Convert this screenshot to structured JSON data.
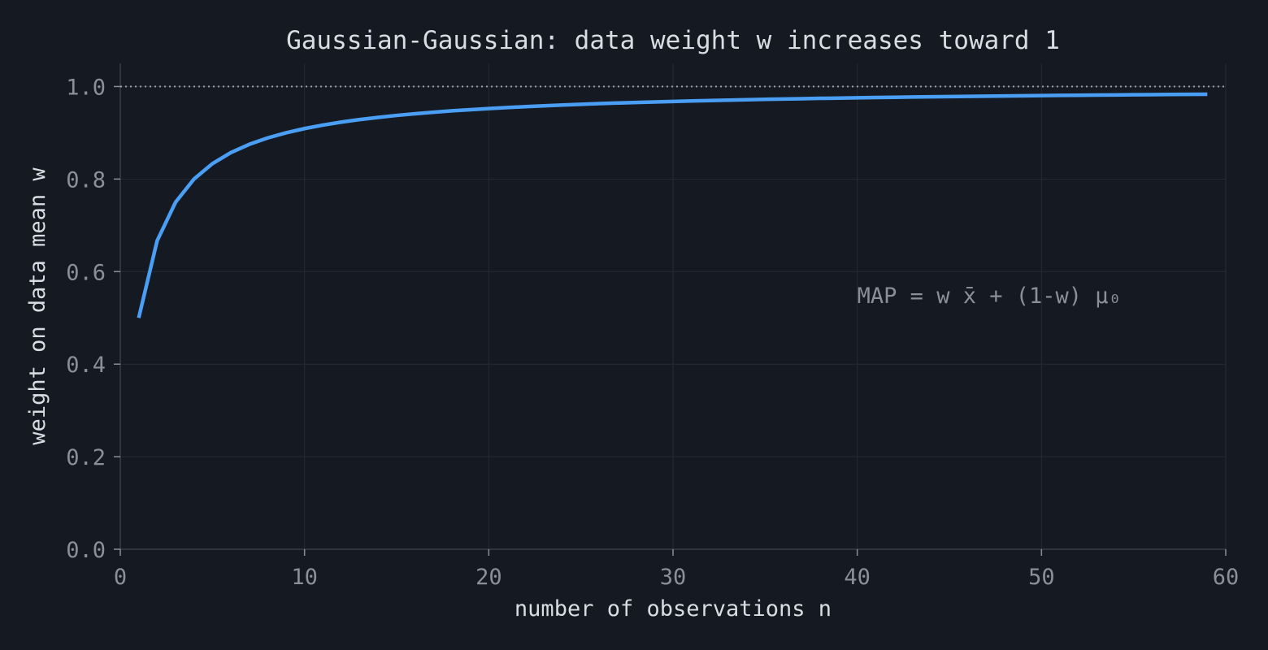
{
  "chart_data": {
    "type": "line",
    "title": "Gaussian-Gaussian: data weight w increases toward 1",
    "xlabel": "number of observations  n",
    "ylabel": "weight on data mean  w",
    "xlim": [
      0,
      60
    ],
    "ylim": [
      0,
      1.05
    ],
    "x_ticks": [
      0,
      10,
      20,
      30,
      40,
      50,
      60
    ],
    "y_ticks": [
      0.0,
      0.2,
      0.4,
      0.6,
      0.8,
      1.0
    ],
    "x_tick_labels": [
      "0",
      "10",
      "20",
      "30",
      "40",
      "50",
      "60"
    ],
    "y_tick_labels": [
      "0.0",
      "0.2",
      "0.4",
      "0.6",
      "0.8",
      "1.0"
    ],
    "grid": true,
    "reference_line": {
      "y": 1.0,
      "style": "dotted",
      "color": "#9aa0a8"
    },
    "annotation": {
      "text": "MAP = w x̄ + (1-w) μ₀",
      "x": 40,
      "y": 0.55
    },
    "series": [
      {
        "color": "#4a9ff5",
        "x": [
          1,
          2,
          3,
          4,
          5,
          6,
          7,
          8,
          9,
          10,
          11,
          12,
          13,
          14,
          15,
          16,
          17,
          18,
          19,
          20,
          21,
          22,
          23,
          24,
          25,
          26,
          27,
          28,
          29,
          30,
          31,
          32,
          33,
          34,
          35,
          36,
          37,
          38,
          39,
          40,
          41,
          42,
          43,
          44,
          45,
          46,
          47,
          48,
          49,
          50,
          51,
          52,
          53,
          54,
          55,
          56,
          57,
          58,
          59
        ],
        "y": [
          0.5,
          0.6667,
          0.75,
          0.8,
          0.8333,
          0.8571,
          0.875,
          0.8889,
          0.9,
          0.9091,
          0.9167,
          0.9231,
          0.9286,
          0.9333,
          0.9375,
          0.9412,
          0.9444,
          0.9474,
          0.95,
          0.9524,
          0.9545,
          0.9565,
          0.9583,
          0.96,
          0.9615,
          0.963,
          0.9643,
          0.9655,
          0.9667,
          0.9677,
          0.9688,
          0.9697,
          0.9706,
          0.9714,
          0.9722,
          0.973,
          0.9737,
          0.9744,
          0.975,
          0.9756,
          0.9762,
          0.9767,
          0.9773,
          0.9778,
          0.9783,
          0.9787,
          0.9792,
          0.9796,
          0.98,
          0.9804,
          0.9808,
          0.9811,
          0.9815,
          0.9818,
          0.9821,
          0.9825,
          0.9828,
          0.9831,
          0.9833
        ]
      }
    ]
  }
}
